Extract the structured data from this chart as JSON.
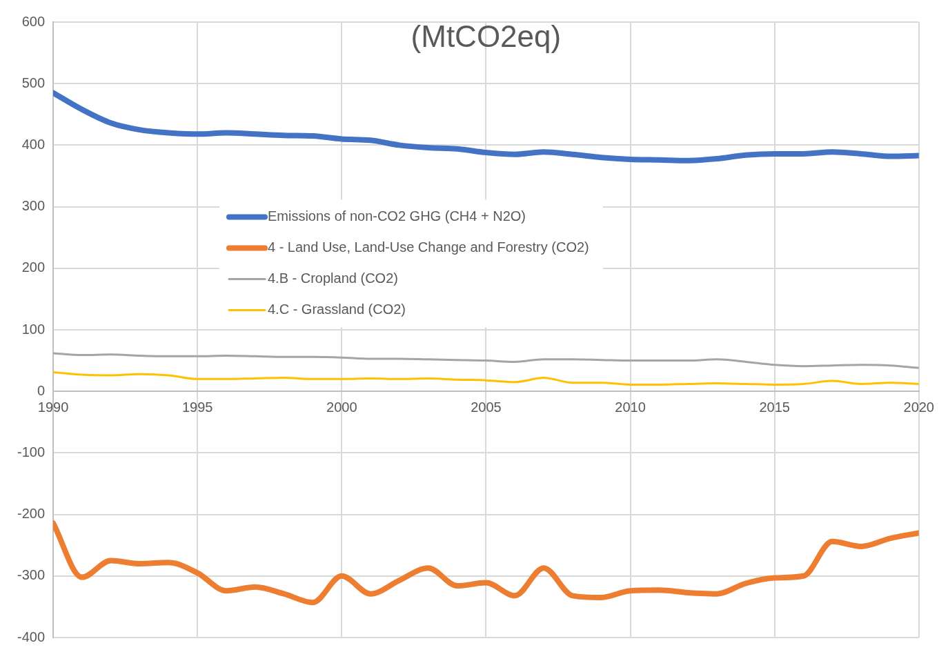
{
  "chart_data": {
    "type": "line",
    "title": "(MtCO2eq)",
    "x": [
      1990,
      1991,
      1992,
      1993,
      1994,
      1995,
      1996,
      1997,
      1998,
      1999,
      2000,
      2001,
      2002,
      2003,
      2004,
      2005,
      2006,
      2007,
      2008,
      2009,
      2010,
      2011,
      2012,
      2013,
      2014,
      2015,
      2016,
      2017,
      2018,
      2019,
      2020
    ],
    "series": [
      {
        "name": "Emissions of non-CO2 GHG (CH4 + N2O)",
        "color": "#4472c4",
        "values": [
          485,
          458,
          436,
          425,
          420,
          418,
          420,
          418,
          416,
          415,
          410,
          408,
          400,
          396,
          394,
          388,
          385,
          389,
          385,
          380,
          377,
          376,
          375,
          378,
          384,
          386,
          386,
          389,
          386,
          382,
          383
        ]
      },
      {
        "name": "4 - Land Use, Land-Use Change and Forestry (CO2)",
        "color": "#ed7d31",
        "values": [
          -214,
          -302,
          -275,
          -280,
          -278,
          -295,
          -324,
          -318,
          -329,
          -343,
          -300,
          -329,
          -307,
          -287,
          -316,
          -311,
          -332,
          -287,
          -332,
          -335,
          -324,
          -323,
          -327,
          -329,
          -312,
          -303,
          -300,
          -244,
          -252,
          -239,
          -230
        ]
      },
      {
        "name": "4.B - Cropland (CO2)",
        "color": "#a5a5a5",
        "values": [
          62,
          59,
          60,
          58,
          57,
          57,
          58,
          57,
          56,
          56,
          55,
          53,
          53,
          52,
          51,
          50,
          48,
          52,
          52,
          51,
          50,
          50,
          50,
          52,
          48,
          43,
          41,
          42,
          43,
          42,
          38
        ]
      },
      {
        "name": "4.C - Grassland (CO2)",
        "color": "#ffc000",
        "values": [
          31,
          27,
          26,
          28,
          26,
          20,
          20,
          21,
          22,
          20,
          20,
          21,
          20,
          21,
          19,
          18,
          15,
          22,
          14,
          14,
          11,
          11,
          12,
          13,
          12,
          11,
          12,
          17,
          12,
          14,
          12
        ]
      }
    ],
    "xlim": [
      1990,
      2020
    ],
    "xticks": [
      1990,
      1995,
      2000,
      2005,
      2010,
      2015,
      2020
    ],
    "ylim": [
      -400,
      600
    ],
    "yticks": [
      -400,
      -300,
      -200,
      -100,
      0,
      100,
      200,
      300,
      400,
      500,
      600
    ],
    "grid": true,
    "legend": "left"
  }
}
